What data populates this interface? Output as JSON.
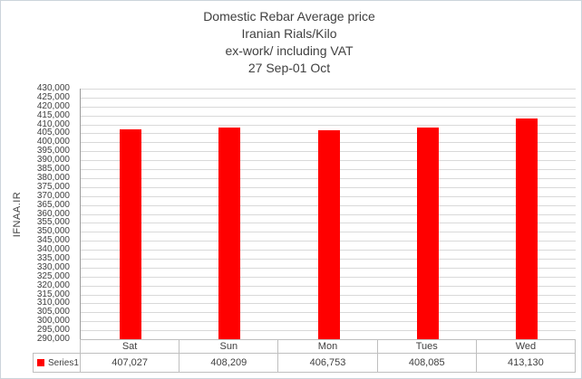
{
  "chart_data": {
    "type": "bar",
    "title_lines": [
      "Domestic Rebar Average price",
      "Iranian Rials/Kilo",
      "ex-work/ including VAT",
      "27 Sep-01 Oct"
    ],
    "title": "Domestic Rebar Average price Iranian Rials/Kilo ex-work/ including VAT 27 Sep-01 Oct",
    "xlabel": "",
    "ylabel": "IFNAA.IR",
    "categories": [
      "Sat",
      "Sun",
      "Mon",
      "Tues",
      "Wed"
    ],
    "series": [
      {
        "name": "Series1",
        "values": [
          407027,
          408209,
          406753,
          408085,
          413130
        ],
        "formatted": [
          "407,027",
          "408,209",
          "406,753",
          "408,085",
          "413,130"
        ],
        "color": "#FF0000"
      }
    ],
    "ylim": [
      290000,
      430000
    ],
    "ytick_step": 5000,
    "ytick_labels": [
      "430,000",
      "425,000",
      "420,000",
      "415,000",
      "410,000",
      "405,000",
      "400,000",
      "395,000",
      "390,000",
      "385,000",
      "380,000",
      "375,000",
      "370,000",
      "365,000",
      "360,000",
      "355,000",
      "350,000",
      "345,000",
      "340,000",
      "335,000",
      "330,000",
      "325,000",
      "320,000",
      "315,000",
      "310,000",
      "305,000",
      "300,000",
      "295,000",
      "290,000"
    ],
    "grid": true,
    "legend_position": "bottom-table"
  },
  "colors": {
    "bar": "#FF0000",
    "gridline": "#D9D9D9",
    "axis_line": "#9A9A9A",
    "table_border": "#BFBFBF",
    "text": "#404040",
    "chart_border": "#CCD4DB",
    "background": "#FFFFFF"
  }
}
